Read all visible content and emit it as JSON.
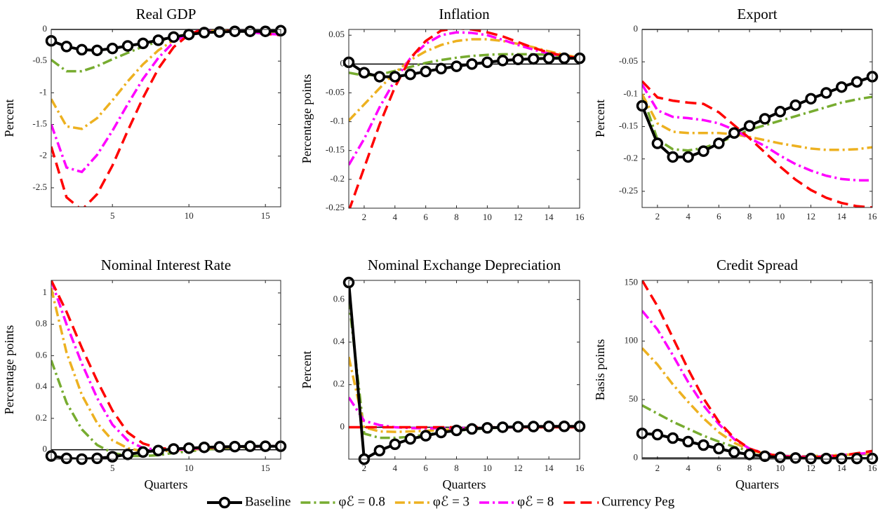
{
  "chart_data": [
    {
      "type": "line",
      "title": "Real GDP",
      "ylabel": "Percent",
      "x": [
        1,
        2,
        3,
        4,
        5,
        6,
        7,
        8,
        9,
        10,
        11,
        12,
        13,
        14,
        15,
        16
      ],
      "xlim": [
        1,
        16
      ],
      "xticks": [
        5,
        10,
        15
      ],
      "ylim": [
        -2.8,
        0
      ],
      "yticks": [
        -2.5,
        -2,
        -1.5,
        -1,
        -0.5,
        0
      ],
      "series": [
        {
          "name": "Baseline",
          "color": "#000000",
          "line_style": "solid",
          "marker": "o",
          "values": [
            -0.18,
            -0.27,
            -0.32,
            -0.33,
            -0.3,
            -0.26,
            -0.22,
            -0.17,
            -0.12,
            -0.08,
            -0.05,
            -0.04,
            -0.03,
            -0.03,
            -0.03,
            -0.02
          ]
        },
        {
          "name": "φℰ = 0.8",
          "color": "#77ac30",
          "line_style": "dashdot",
          "values": [
            -0.48,
            -0.66,
            -0.66,
            -0.58,
            -0.47,
            -0.37,
            -0.27,
            -0.19,
            -0.12,
            -0.07,
            -0.04,
            -0.02,
            -0.02,
            -0.03,
            -0.04,
            -0.05
          ]
        },
        {
          "name": "φℰ = 3",
          "color": "#edb120",
          "line_style": "dashdot",
          "values": [
            -1.1,
            -1.53,
            -1.57,
            -1.4,
            -1.12,
            -0.82,
            -0.55,
            -0.33,
            -0.17,
            -0.07,
            -0.02,
            -0.01,
            -0.02,
            -0.04,
            -0.05,
            -0.07
          ]
        },
        {
          "name": "φℰ = 8",
          "color": "#ff00ff",
          "line_style": "dashdot",
          "values": [
            -1.5,
            -2.18,
            -2.25,
            -1.98,
            -1.6,
            -1.18,
            -0.78,
            -0.45,
            -0.2,
            -0.06,
            0,
            0,
            -0.02,
            -0.04,
            -0.07,
            -0.08
          ]
        },
        {
          "name": "Currency Peg",
          "color": "#ff0000",
          "line_style": "dashed",
          "values": [
            -1.85,
            -2.65,
            -2.85,
            -2.6,
            -2.15,
            -1.6,
            -1.08,
            -0.62,
            -0.28,
            -0.08,
            0.01,
            0.02,
            -0.01,
            -0.04,
            -0.07,
            -0.09
          ]
        }
      ]
    },
    {
      "type": "line",
      "title": "Inflation",
      "ylabel": "Percentage points",
      "x": [
        1,
        2,
        3,
        4,
        5,
        6,
        7,
        8,
        9,
        10,
        11,
        12,
        13,
        14,
        15,
        16
      ],
      "xlim": [
        1,
        16
      ],
      "xticks": [
        2,
        4,
        6,
        8,
        10,
        12,
        14,
        16
      ],
      "ylim": [
        -0.25,
        0.06
      ],
      "yticks": [
        -0.25,
        -0.2,
        -0.15,
        -0.1,
        -0.05,
        0,
        0.05
      ],
      "series": [
        {
          "color": "#000000",
          "line_style": "solid",
          "marker": "o",
          "values": [
            0.003,
            -0.015,
            -0.022,
            -0.022,
            -0.018,
            -0.013,
            -0.008,
            -0.004,
            0,
            0.003,
            0.006,
            0.008,
            0.009,
            0.01,
            0.01,
            0.01
          ]
        },
        {
          "color": "#77ac30",
          "line_style": "dashdot",
          "values": [
            -0.015,
            -0.02,
            -0.018,
            -0.012,
            -0.005,
            0.002,
            0.007,
            0.011,
            0.014,
            0.016,
            0.017,
            0.017,
            0.017,
            0.016,
            0.014,
            0.012
          ]
        },
        {
          "color": "#edb120",
          "line_style": "dashdot",
          "values": [
            -0.098,
            -0.07,
            -0.042,
            -0.015,
            0.007,
            0.022,
            0.033,
            0.04,
            0.043,
            0.043,
            0.04,
            0.035,
            0.029,
            0.022,
            0.016,
            0.011
          ]
        },
        {
          "color": "#ff00ff",
          "line_style": "dashdot",
          "values": [
            -0.175,
            -0.13,
            -0.075,
            -0.028,
            0.01,
            0.035,
            0.05,
            0.055,
            0.054,
            0.05,
            0.042,
            0.033,
            0.025,
            0.018,
            0.013,
            0.01
          ]
        },
        {
          "color": "#ff0000",
          "line_style": "dashed",
          "values": [
            -0.255,
            -0.18,
            -0.105,
            -0.04,
            0.01,
            0.04,
            0.058,
            0.062,
            0.06,
            0.055,
            0.048,
            0.038,
            0.028,
            0.02,
            0.014,
            0.01
          ]
        }
      ]
    },
    {
      "type": "line",
      "title": "Export",
      "ylabel": "Percent",
      "x": [
        1,
        2,
        3,
        4,
        5,
        6,
        7,
        8,
        9,
        10,
        11,
        12,
        13,
        14,
        15,
        16
      ],
      "xlim": [
        1,
        16
      ],
      "xticks": [
        2,
        4,
        6,
        8,
        10,
        12,
        14,
        16
      ],
      "ylim": [
        -0.275,
        0
      ],
      "yticks": [
        -0.25,
        -0.2,
        -0.15,
        -0.1,
        -0.05,
        0
      ],
      "series": [
        {
          "color": "#000000",
          "line_style": "solid",
          "marker": "o",
          "values": [
            -0.118,
            -0.176,
            -0.197,
            -0.197,
            -0.188,
            -0.176,
            -0.16,
            -0.149,
            -0.138,
            -0.127,
            -0.117,
            -0.107,
            -0.098,
            -0.089,
            -0.081,
            -0.073
          ]
        },
        {
          "color": "#77ac30",
          "line_style": "dashdot",
          "values": [
            -0.1,
            -0.17,
            -0.185,
            -0.187,
            -0.183,
            -0.175,
            -0.165,
            -0.155,
            -0.148,
            -0.141,
            -0.134,
            -0.127,
            -0.12,
            -0.113,
            -0.108,
            -0.104
          ]
        },
        {
          "color": "#edb120",
          "line_style": "dashdot",
          "values": [
            -0.1,
            -0.145,
            -0.158,
            -0.16,
            -0.16,
            -0.16,
            -0.162,
            -0.166,
            -0.171,
            -0.176,
            -0.18,
            -0.184,
            -0.186,
            -0.186,
            -0.185,
            -0.182
          ]
        },
        {
          "color": "#ff00ff",
          "line_style": "dashdot",
          "values": [
            -0.085,
            -0.125,
            -0.135,
            -0.137,
            -0.14,
            -0.145,
            -0.155,
            -0.168,
            -0.18,
            -0.195,
            -0.208,
            -0.218,
            -0.226,
            -0.231,
            -0.233,
            -0.233
          ]
        },
        {
          "color": "#ff0000",
          "line_style": "dashed",
          "values": [
            -0.08,
            -0.105,
            -0.11,
            -0.113,
            -0.115,
            -0.128,
            -0.148,
            -0.168,
            -0.19,
            -0.212,
            -0.232,
            -0.248,
            -0.26,
            -0.268,
            -0.273,
            -0.275
          ]
        }
      ]
    },
    {
      "type": "line",
      "title": "Nominal Interest Rate",
      "ylabel": "Percentage points",
      "xlabel": "Quarters",
      "x": [
        1,
        2,
        3,
        4,
        5,
        6,
        7,
        8,
        9,
        10,
        11,
        12,
        13,
        14,
        15,
        16
      ],
      "xlim": [
        1,
        16
      ],
      "xticks": [
        5,
        10,
        15
      ],
      "ylim": [
        -0.06,
        1.08
      ],
      "yticks": [
        0,
        0.2,
        0.4,
        0.6,
        0.8,
        1
      ],
      "series": [
        {
          "color": "#000000",
          "line_style": "solid",
          "marker": "o",
          "values": [
            -0.04,
            -0.055,
            -0.06,
            -0.055,
            -0.045,
            -0.03,
            -0.015,
            -0.005,
            0.005,
            0.01,
            0.015,
            0.018,
            0.02,
            0.022,
            0.022,
            0.022
          ]
        },
        {
          "color": "#77ac30",
          "line_style": "dashdot",
          "values": [
            0.57,
            0.3,
            0.13,
            0.03,
            -0.02,
            -0.04,
            -0.04,
            -0.035,
            -0.02,
            -0.01,
            0,
            0.008,
            0.014,
            0.018,
            0.02,
            0.022
          ]
        },
        {
          "color": "#edb120",
          "line_style": "dashdot",
          "values": [
            1.03,
            0.62,
            0.35,
            0.17,
            0.06,
            0.01,
            -0.01,
            -0.01,
            -0.005,
            0,
            0.008,
            0.014,
            0.018,
            0.02,
            0.022,
            0.022
          ]
        },
        {
          "color": "#ff00ff",
          "line_style": "dashdot",
          "values": [
            1.08,
            0.8,
            0.55,
            0.33,
            0.16,
            0.06,
            0.01,
            0,
            0,
            0.005,
            0.01,
            0.015,
            0.018,
            0.02,
            0.022,
            0.022
          ]
        },
        {
          "color": "#ff0000",
          "line_style": "dashed",
          "values": [
            1.08,
            0.88,
            0.65,
            0.44,
            0.25,
            0.11,
            0.04,
            0.01,
            0.005,
            0.008,
            0.012,
            0.016,
            0.019,
            0.021,
            0.022,
            0.022
          ]
        }
      ]
    },
    {
      "type": "line",
      "title": "Nominal Exchange Depreciation",
      "ylabel": "Percent",
      "xlabel": "Quarters",
      "x": [
        1,
        2,
        3,
        4,
        5,
        6,
        7,
        8,
        9,
        10,
        11,
        12,
        13,
        14,
        15,
        16
      ],
      "xlim": [
        1,
        16
      ],
      "xticks": [
        2,
        4,
        6,
        8,
        10,
        12,
        14,
        16
      ],
      "ylim": [
        -0.15,
        0.69
      ],
      "yticks": [
        0,
        0.2,
        0.4,
        0.6
      ],
      "series": [
        {
          "color": "#000000",
          "line_style": "solid",
          "marker": "o",
          "values": [
            0.68,
            -0.15,
            -0.11,
            -0.08,
            -0.055,
            -0.04,
            -0.025,
            -0.015,
            -0.008,
            -0.003,
            0,
            0.002,
            0.003,
            0.004,
            0.004,
            0.004
          ]
        },
        {
          "color": "#77ac30",
          "line_style": "dashdot",
          "values": [
            0.6,
            -0.03,
            -0.05,
            -0.05,
            -0.045,
            -0.035,
            -0.025,
            -0.017,
            -0.01,
            -0.005,
            -0.002,
            0,
            0.002,
            0.003,
            0.003,
            0.003
          ]
        },
        {
          "color": "#edb120",
          "line_style": "dashdot",
          "values": [
            0.33,
            0,
            -0.02,
            -0.022,
            -0.02,
            -0.017,
            -0.013,
            -0.009,
            -0.006,
            -0.003,
            -0.001,
            0,
            0.001,
            0.002,
            0.002,
            0.002
          ]
        },
        {
          "color": "#ff00ff",
          "line_style": "dashdot",
          "values": [
            0.14,
            0.03,
            0.01,
            0,
            -0.004,
            -0.005,
            -0.005,
            -0.004,
            -0.003,
            -0.002,
            -0.001,
            0,
            0.001,
            0.001,
            0.001,
            0.001
          ]
        },
        {
          "color": "#ff0000",
          "line_style": "dashed",
          "values": [
            0,
            0,
            0,
            0,
            0,
            0,
            0,
            0,
            0,
            0,
            0,
            0,
            0,
            0,
            0,
            0
          ]
        }
      ]
    },
    {
      "type": "line",
      "title": "Credit Spread",
      "ylabel": "Basis points",
      "xlabel": "Quarters",
      "x": [
        1,
        2,
        3,
        4,
        5,
        6,
        7,
        8,
        9,
        10,
        11,
        12,
        13,
        14,
        15,
        16
      ],
      "xlim": [
        1,
        16
      ],
      "xticks": [
        2,
        4,
        6,
        8,
        10,
        12,
        14,
        16
      ],
      "ylim": [
        -1,
        152
      ],
      "yticks": [
        0,
        50,
        100,
        150
      ],
      "series": [
        {
          "color": "#000000",
          "line_style": "solid",
          "marker": "o",
          "values": [
            21,
            20,
            17,
            14,
            11,
            8,
            5,
            3,
            1.5,
            0.5,
            0,
            -0.5,
            -0.5,
            -0.5,
            -0.5,
            -0.5
          ]
        },
        {
          "color": "#77ac30",
          "line_style": "dashdot",
          "values": [
            45,
            38,
            31,
            25,
            19,
            14,
            9.5,
            6,
            3.5,
            2,
            1.5,
            1.5,
            2,
            2.5,
            3,
            3.5
          ]
        },
        {
          "color": "#edb120",
          "line_style": "dashdot",
          "values": [
            94,
            80,
            63,
            48,
            34,
            22,
            13,
            7,
            3.5,
            2,
            1.5,
            1.5,
            2,
            2.5,
            3.5,
            4
          ]
        },
        {
          "color": "#ff00ff",
          "line_style": "dashdot",
          "values": [
            126,
            110,
            88,
            65,
            45,
            29,
            16,
            8,
            4,
            2,
            1,
            1,
            1.5,
            2.5,
            3.5,
            4.5
          ]
        },
        {
          "color": "#ff0000",
          "line_style": "dashed",
          "values": [
            152,
            130,
            103,
            76,
            51,
            31,
            17,
            8,
            3.5,
            1.5,
            0.5,
            0.5,
            1,
            2,
            4,
            6
          ]
        }
      ]
    }
  ]
}
